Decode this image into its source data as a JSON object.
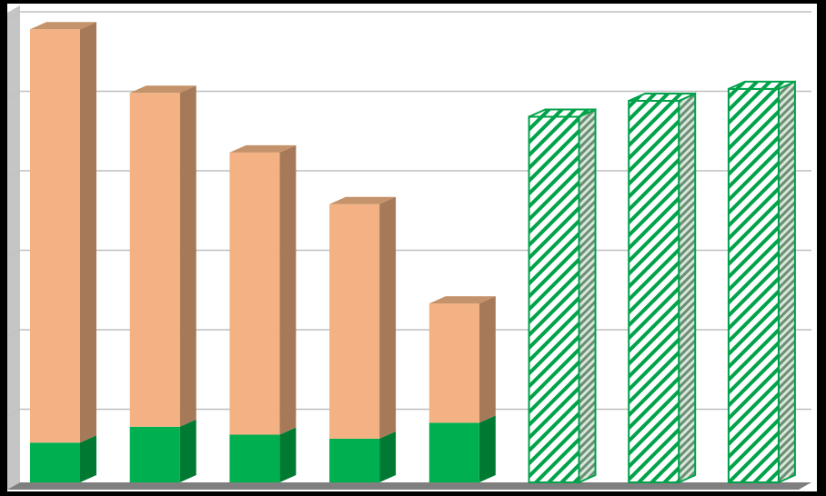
{
  "colors": {
    "background": "#000000",
    "plot_area": "#ffffff",
    "gridline": "#bfbfbf",
    "wall_side": "#8c8c8c",
    "floor": "#7f7f7f",
    "base_front": "#00b050",
    "base_side": "#007a33",
    "stack_front": "#f4b183",
    "stack_side": "#a67a58",
    "stack_top": "#c4936b",
    "hatch_stroke": "#00a24a",
    "hatch_line": "#00a24a",
    "hatch_side": "#6b8f74"
  },
  "chart_data": {
    "type": "bar",
    "stacked": true,
    "three_d": true,
    "grid": true,
    "legend": "none",
    "title": "",
    "xlabel": "",
    "ylabel": "",
    "ylim": [
      0,
      6
    ],
    "categories": [
      "",
      "",
      "",
      "",
      "",
      "",
      "",
      ""
    ],
    "series": [
      {
        "style": "solid-green",
        "values": [
          0.5,
          0.7,
          0.6,
          0.55,
          0.75,
          0,
          0,
          0
        ]
      },
      {
        "style": "solid-peach",
        "values": [
          5.2,
          4.2,
          3.55,
          2.95,
          1.5,
          0,
          0,
          0
        ]
      },
      {
        "style": "hatched-green",
        "values": [
          0,
          0,
          0,
          0,
          0,
          4.6,
          4.8,
          4.95
        ]
      }
    ]
  }
}
